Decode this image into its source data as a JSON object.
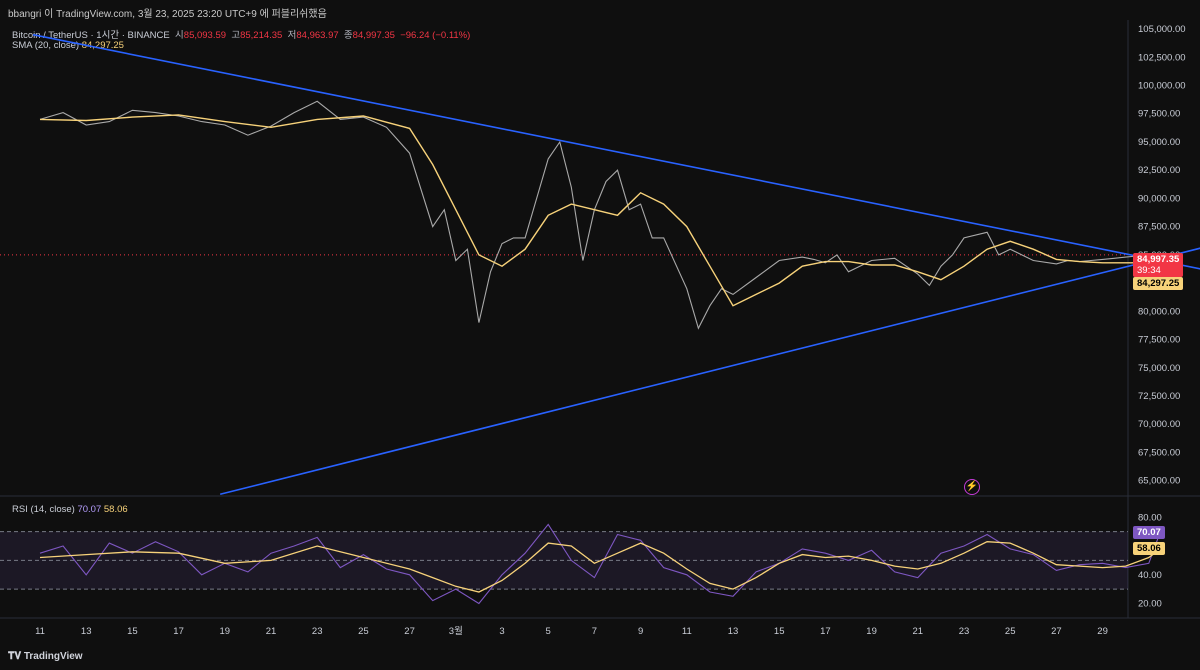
{
  "header": {
    "author_line": "bbangri 이 TradingView.com, 3월 23, 2025 23:20 UTC+9 에 퍼블리쉬했음"
  },
  "symbol": {
    "name": "Bitcoin / TetherUS · 1시간 · BINANCE",
    "open_label": "시",
    "open": "85,093.59",
    "high_label": "고",
    "high": "85,214.35",
    "low_label": "저",
    "low": "84,963.97",
    "close_label": "종",
    "close": "84,997.35",
    "change": "−96.24 (−0.11%)"
  },
  "sma": {
    "label": "SMA (20, close)",
    "value": "84,297.25"
  },
  "rsi": {
    "label": "RSI (14, close)",
    "value": "70.07",
    "ma_value": "58.06"
  },
  "price_tags": {
    "last_price": "84,997.35",
    "countdown": "39:34",
    "sma_price": "84,297.25",
    "rsi_value": "70.07",
    "rsi_ma": "58.06"
  },
  "footer": {
    "brand": "TradingView"
  },
  "colors": {
    "background": "#0f0f0f",
    "trendline": "#2962ff",
    "sma": "#f7d27a",
    "rsi": "#7e57c2",
    "last_price_tag": "#f23645"
  },
  "chart_data": [
    {
      "type": "line",
      "title": "Bitcoin / TetherUS · 1시간 · BINANCE",
      "x_ticks": [
        "11",
        "13",
        "15",
        "17",
        "19",
        "21",
        "23",
        "25",
        "27",
        "3월",
        "3",
        "5",
        "7",
        "9",
        "11",
        "13",
        "15",
        "17",
        "19",
        "21",
        "23",
        "25",
        "27",
        "29"
      ],
      "y_ticks": [
        105000,
        102500,
        100000,
        97500,
        95000,
        92500,
        90000,
        87500,
        85000,
        82500,
        80000,
        77500,
        75000,
        72500,
        70000,
        67500,
        65000
      ],
      "ylim": [
        64000,
        105800
      ],
      "series": [
        {
          "name": "Price",
          "x_day_index": [
            0,
            1,
            2,
            3,
            4,
            5,
            6,
            7,
            8,
            9,
            10,
            11,
            12,
            13,
            14,
            15,
            16,
            17,
            17.5,
            18,
            18.5,
            19,
            19.5,
            20,
            20.5,
            21,
            22,
            22.5,
            23,
            23.5,
            24,
            24.5,
            25,
            25.5,
            26,
            26.5,
            27,
            28,
            28.5,
            29,
            29.5,
            30,
            31,
            32,
            33,
            33.5,
            34,
            34.5,
            35,
            36,
            37,
            38,
            38.5,
            39,
            39.5,
            40,
            41,
            41.5,
            42,
            43,
            44,
            44.5,
            45,
            45.5,
            46,
            46.5,
            47,
            47.5,
            48,
            48.5
          ],
          "values": [
            97000,
            97600,
            96500,
            96800,
            97800,
            97600,
            97300,
            96800,
            96500,
            95600,
            96400,
            97600,
            98600,
            97000,
            97200,
            96300,
            94000,
            87500,
            89000,
            84500,
            85500,
            79000,
            83500,
            86000,
            86500,
            86500,
            93500,
            95000,
            91000,
            84500,
            89000,
            91500,
            92500,
            89000,
            89500,
            86500,
            86500,
            82000,
            78500,
            80500,
            82000,
            81500,
            83000,
            84500,
            84800,
            84600,
            84300,
            85000,
            83500,
            84500,
            84700,
            83300,
            82300,
            84000,
            85000,
            86500,
            87000,
            85000,
            85500,
            84500,
            84200,
            84500,
            84400,
            84500,
            84600,
            84700,
            84800,
            84900,
            85000,
            84997
          ]
        },
        {
          "name": "SMA (20, close)",
          "x_day_index": [
            0,
            2,
            4,
            6,
            8,
            10,
            12,
            14,
            16,
            17,
            18,
            19,
            20,
            21,
            22,
            23,
            24,
            25,
            26,
            27,
            28,
            29,
            30,
            31,
            32,
            33,
            34,
            35,
            36,
            37,
            38,
            39,
            40,
            41,
            42,
            43,
            44,
            45,
            46,
            47,
            48,
            48.5
          ],
          "values": [
            97000,
            96900,
            97200,
            97400,
            96800,
            96300,
            97000,
            97300,
            96200,
            93000,
            89000,
            85000,
            84000,
            85500,
            88500,
            89500,
            89000,
            88500,
            90500,
            89500,
            87500,
            84000,
            80500,
            81500,
            82500,
            84000,
            84400,
            84400,
            84100,
            84100,
            83500,
            82800,
            84000,
            85500,
            86200,
            85500,
            84600,
            84400,
            84300,
            84300,
            84300,
            84297
          ]
        }
      ],
      "trendlines": [
        {
          "name": "descending",
          "from": {
            "day": -0.3,
            "price": 104500
          },
          "to": {
            "day": 55.5,
            "price": 81600
          }
        },
        {
          "name": "ascending",
          "from": {
            "day": 7.8,
            "price": 63800
          },
          "to": {
            "day": 55.5,
            "price": 88300
          }
        }
      ],
      "horizontal_line": {
        "price": 84997.35
      }
    },
    {
      "type": "line",
      "title": "RSI (14, close)",
      "y_ticks": [
        80,
        60,
        40,
        20
      ],
      "ylim": [
        12,
        92
      ],
      "bands": {
        "upper": 70,
        "middle": 50,
        "lower": 30
      },
      "series": [
        {
          "name": "RSI",
          "x_day_index": [
            0,
            1,
            2,
            3,
            4,
            5,
            6,
            7,
            8,
            9,
            10,
            11,
            12,
            13,
            14,
            15,
            16,
            17,
            18,
            19,
            20,
            21,
            22,
            23,
            24,
            25,
            26,
            27,
            28,
            29,
            30,
            31,
            32,
            33,
            34,
            35,
            36,
            37,
            38,
            39,
            40,
            41,
            42,
            43,
            44,
            45,
            46,
            47,
            48,
            48.5
          ],
          "values": [
            55,
            60,
            40,
            62,
            55,
            63,
            56,
            40,
            48,
            42,
            55,
            60,
            66,
            45,
            54,
            44,
            40,
            22,
            30,
            20,
            40,
            55,
            75,
            50,
            38,
            68,
            64,
            45,
            40,
            28,
            25,
            42,
            48,
            58,
            55,
            50,
            57,
            42,
            38,
            55,
            60,
            68,
            58,
            54,
            43,
            47,
            48,
            45,
            48,
            70
          ]
        },
        {
          "name": "RSI MA",
          "x_day_index": [
            0,
            2,
            4,
            6,
            8,
            10,
            12,
            14,
            16,
            17,
            18,
            19,
            20,
            21,
            22,
            23,
            24,
            25,
            26,
            27,
            28,
            29,
            30,
            31,
            32,
            33,
            34,
            35,
            36,
            37,
            38,
            39,
            40,
            41,
            42,
            43,
            44,
            45,
            46,
            47,
            48,
            48.5
          ],
          "values": [
            52,
            54,
            56,
            55,
            48,
            50,
            60,
            52,
            44,
            38,
            32,
            28,
            36,
            48,
            62,
            60,
            48,
            55,
            62,
            55,
            44,
            34,
            30,
            38,
            48,
            54,
            52,
            53,
            50,
            46,
            44,
            48,
            55,
            63,
            62,
            55,
            47,
            46,
            45,
            46,
            52,
            58
          ]
        }
      ]
    }
  ]
}
